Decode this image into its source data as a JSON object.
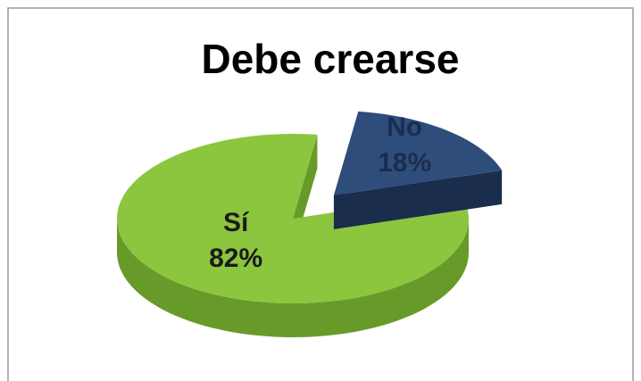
{
  "chart_data": {
    "type": "pie",
    "title": "Debe crearse",
    "categories": [
      "Sí",
      "No"
    ],
    "values": [
      82,
      18
    ],
    "value_labels": [
      "82%",
      "18%"
    ],
    "colors": [
      "#8cc63e",
      "#2e4d7b"
    ],
    "side_colors": [
      "#689a2a",
      "#1b2d4c"
    ]
  }
}
